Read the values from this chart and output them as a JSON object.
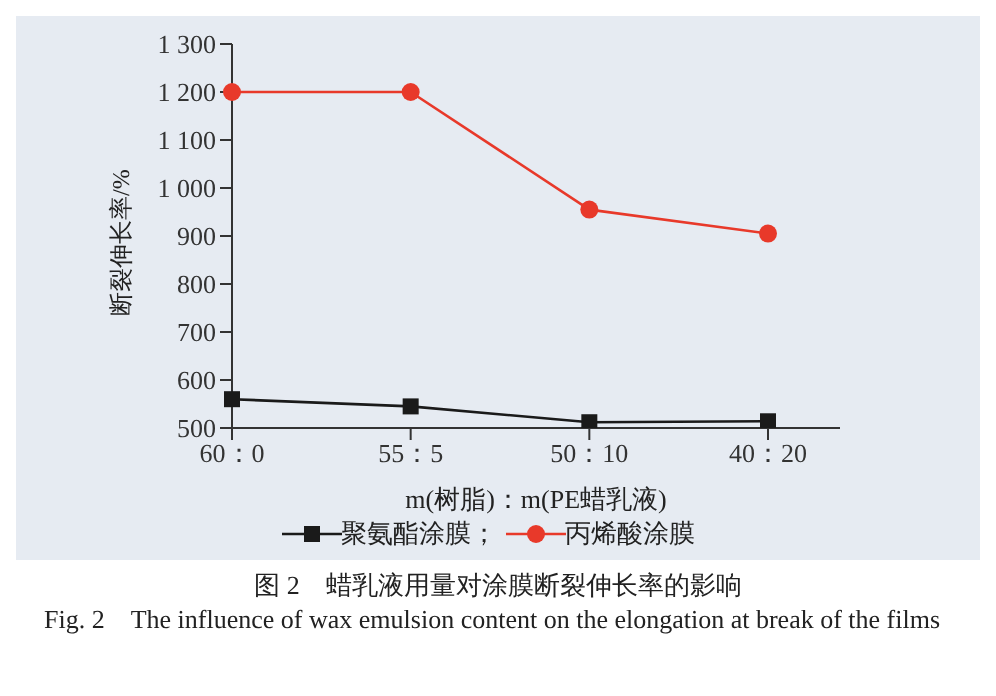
{
  "chart_data": {
    "type": "line",
    "xlabel": "m(树脂)：m(PE蜡乳液)",
    "ylabel": "断裂伸长率/%",
    "categories": [
      "60：0",
      "55：5",
      "50：10",
      "40：20"
    ],
    "series": [
      {
        "name": "聚氨酯涂膜；",
        "color": "#1a1a1a",
        "marker": "square",
        "values": [
          560,
          545,
          512,
          514
        ]
      },
      {
        "name": "丙烯酸涂膜",
        "color": "#e8392a",
        "marker": "circle",
        "values": [
          1200,
          1200,
          955,
          905
        ]
      }
    ],
    "ylim": [
      500,
      1300
    ],
    "yticks": [
      500,
      600,
      700,
      800,
      900,
      {
        "value": 1000,
        "label": "1 000"
      },
      {
        "value": 1100,
        "label": "1 100"
      },
      {
        "value": 1200,
        "label": "1 200"
      },
      {
        "value": 1300,
        "label": "1 300"
      }
    ],
    "grid": false,
    "legend": "bottom",
    "annotations": [
      "图 2　蜡乳液用量对涂膜断裂伸长率的影响",
      "Fig. 2　The influence of wax emulsion content on the elongation at break of the films"
    ]
  }
}
